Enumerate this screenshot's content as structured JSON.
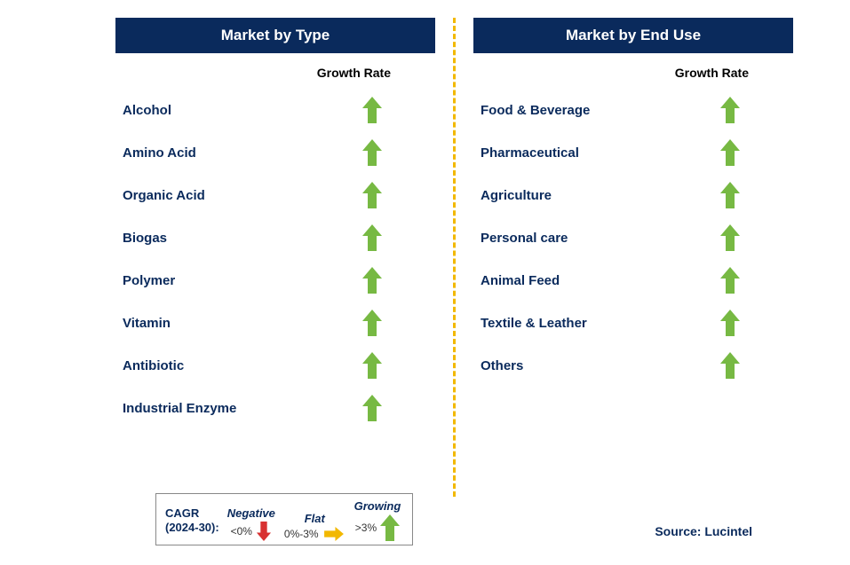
{
  "colors": {
    "header_bg": "#0a2a5c",
    "header_text": "#ffffff",
    "label_text": "#0a2a5c",
    "divider": "#f2b800",
    "arrow_growing": "#77b943",
    "arrow_flat": "#f2b800",
    "arrow_negative": "#d83131",
    "growth_label": "#000000"
  },
  "panels": {
    "left": {
      "title": "Market by Type",
      "growth_label": "Growth Rate",
      "rows": [
        {
          "label": "Alcohol",
          "trend": "growing"
        },
        {
          "label": "Amino Acid",
          "trend": "growing"
        },
        {
          "label": "Organic Acid",
          "trend": "growing"
        },
        {
          "label": "Biogas",
          "trend": "growing"
        },
        {
          "label": "Polymer",
          "trend": "growing"
        },
        {
          "label": "Vitamin",
          "trend": "growing"
        },
        {
          "label": "Antibiotic",
          "trend": "growing"
        },
        {
          "label": "Industrial Enzyme",
          "trend": "growing"
        }
      ]
    },
    "right": {
      "title": "Market by End Use",
      "growth_label": "Growth Rate",
      "rows": [
        {
          "label": "Food & Beverage",
          "trend": "growing"
        },
        {
          "label": "Pharmaceutical",
          "trend": "growing"
        },
        {
          "label": "Agriculture",
          "trend": "growing"
        },
        {
          "label": "Personal care",
          "trend": "growing"
        },
        {
          "label": "Animal Feed",
          "trend": "growing"
        },
        {
          "label": "Textile & Leather",
          "trend": "growing"
        },
        {
          "label": "Others",
          "trend": "growing"
        }
      ]
    }
  },
  "legend": {
    "title_line1": "CAGR",
    "title_line2": "(2024-30):",
    "items": [
      {
        "label": "Negative",
        "range": "<0%",
        "arrow": "down",
        "color": "#d83131"
      },
      {
        "label": "Flat",
        "range": "0%-3%",
        "arrow": "right",
        "color": "#f2b800"
      },
      {
        "label": "Growing",
        "range": ">3%",
        "arrow": "up",
        "color": "#77b943"
      }
    ]
  },
  "source": "Source: Lucintel"
}
